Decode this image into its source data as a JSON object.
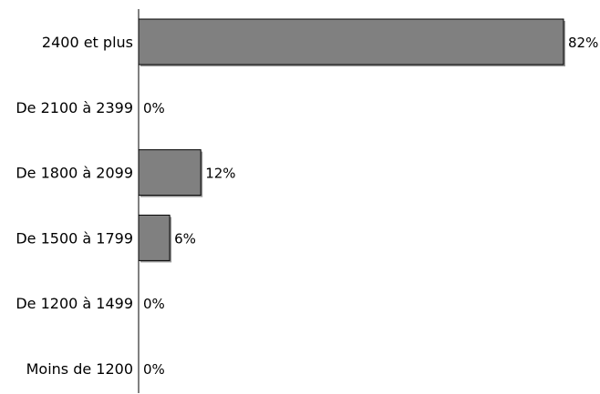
{
  "chart_data": {
    "type": "bar",
    "orientation": "horizontal",
    "categories": [
      "2400 et plus",
      "De 2100 à 2399",
      "De 1800 à 2099",
      "De 1500 à 1799",
      "De 1200 à 1499",
      "Moins de 1200"
    ],
    "values": [
      82,
      0,
      12,
      6,
      0,
      0
    ],
    "value_labels": [
      "82%",
      "0%",
      "12%",
      "6%",
      "0%",
      "0%"
    ],
    "xlim": [
      0,
      82
    ],
    "grid": false,
    "legend": "none",
    "colors": {
      "bar_fill": "#808080",
      "bar_stroke": "#000000",
      "bar_shadow": "#9a9a9a",
      "axis": "#000000"
    }
  }
}
